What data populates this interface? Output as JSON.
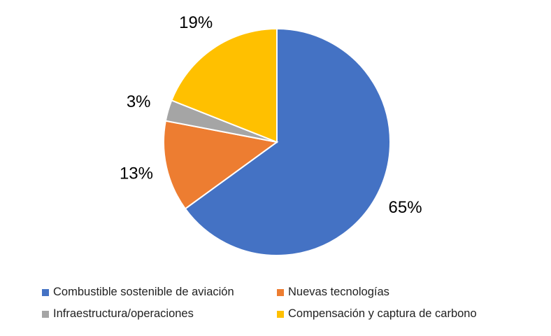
{
  "chart_data": {
    "type": "pie",
    "categories": [
      "Combustible sostenible de aviación",
      "Nuevas tecnologías",
      "Infraestructura/operaciones",
      "Compensación y captura de carbono"
    ],
    "values": [
      65,
      13,
      3,
      19
    ],
    "labels": [
      "65%",
      "13%",
      "3%",
      "19%"
    ],
    "colors": [
      "#4472c4",
      "#ed7d31",
      "#a5a5a5",
      "#ffc000"
    ],
    "legend_position": "bottom"
  }
}
